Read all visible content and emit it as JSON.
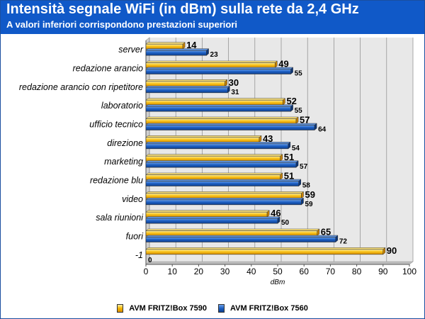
{
  "header": {
    "title": "Intensità segnale WiFi (in dBm) sulla rete da 2,4 GHz",
    "subtitle": "A valori inferiori corrispondono prestazioni superiori"
  },
  "colors": {
    "header_bg": "#1059c8",
    "series_7590": "#f5b400",
    "series_7560": "#1c5fc2",
    "plot_bg": "#e6e6e6"
  },
  "chart_data": {
    "type": "bar",
    "orientation": "horizontal",
    "title": "Intensità segnale WiFi (in dBm) sulla rete da 2,4 GHz",
    "subtitle": "A valori inferiori corrispondono prestazioni superiori",
    "categories": [
      "server",
      "redazione arancio",
      "redazione arancio con ripetitore",
      "laboratorio",
      "ufficio tecnico",
      "direzione",
      "marketing",
      "redazione blu",
      "video",
      "sala riunioni",
      "fuori",
      "-1"
    ],
    "series": [
      {
        "name": "AVM FRITZ!Box 7590",
        "values": [
          14,
          49,
          30,
          52,
          57,
          43,
          51,
          51,
          59,
          46,
          65,
          90
        ]
      },
      {
        "name": "AVM FRITZ!Box 7560",
        "values": [
          23,
          55,
          31,
          55,
          64,
          54,
          57,
          58,
          59,
          50,
          72,
          0
        ]
      }
    ],
    "xlabel": "dBm",
    "ylabel": "",
    "xlim": [
      0,
      100
    ],
    "ticks": [
      0,
      10,
      20,
      30,
      40,
      50,
      60,
      70,
      80,
      90,
      100
    ],
    "grid": true,
    "legend_position": "bottom"
  }
}
